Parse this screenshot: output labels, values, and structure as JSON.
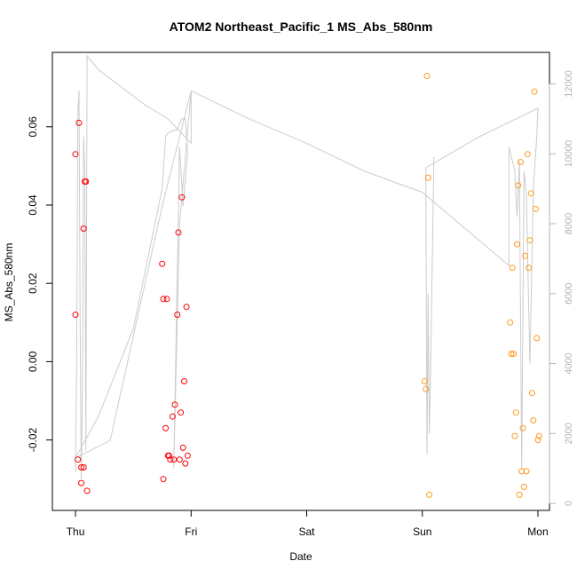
{
  "chart_data": {
    "type": "scatter",
    "title": "ATOM2 Northeast_Pacific_1 MS_Abs_580nm",
    "xlabel": "Date",
    "ylabel": "MS_Abs_580nm",
    "x_ticks": [
      "Thu",
      "Fri",
      "Sat",
      "Sun",
      "Mon"
    ],
    "xlim_days": [
      -0.2,
      4.1
    ],
    "ylim": [
      -0.038,
      0.079
    ],
    "y_ticks": [
      -0.02,
      0.0,
      0.02,
      0.04,
      0.06
    ],
    "y_tick_labels": [
      "-0.02",
      "0.00",
      "0.02",
      "0.04",
      "0.06"
    ],
    "y2_ticks": [
      0,
      2000,
      4000,
      6000,
      8000,
      10000,
      12000
    ],
    "y2_tick_labels": [
      "0",
      "2000",
      "4000",
      "6000",
      "8000",
      "10000",
      "12000"
    ],
    "y2lim": [
      -200,
      12900
    ],
    "grid": false,
    "colors": {
      "red": "#ff0000",
      "orange": "#ff9a1f",
      "line": "#cccccc",
      "axis": "#000000",
      "axis2": "#b3b3b3"
    },
    "series": [
      {
        "color": "red",
        "points": [
          [
            0.0,
            0.053
          ],
          [
            0.0,
            0.012
          ],
          [
            0.02,
            -0.025
          ],
          [
            0.03,
            0.061
          ],
          [
            0.05,
            -0.031
          ],
          [
            0.05,
            -0.027
          ],
          [
            0.07,
            -0.027
          ],
          [
            0.07,
            0.034
          ],
          [
            0.08,
            0.046
          ],
          [
            0.09,
            0.046
          ],
          [
            0.1,
            -0.033
          ],
          [
            0.75,
            0.025
          ],
          [
            0.76,
            0.016
          ],
          [
            0.76,
            -0.03
          ],
          [
            0.78,
            -0.017
          ],
          [
            0.79,
            0.016
          ],
          [
            0.8,
            -0.024
          ],
          [
            0.81,
            -0.024
          ],
          [
            0.82,
            -0.025
          ],
          [
            0.84,
            -0.014
          ],
          [
            0.85,
            -0.025
          ],
          [
            0.86,
            -0.011
          ],
          [
            0.88,
            0.012
          ],
          [
            0.89,
            0.033
          ],
          [
            0.9,
            -0.025
          ],
          [
            0.91,
            -0.013
          ],
          [
            0.92,
            0.042
          ],
          [
            0.93,
            -0.022
          ],
          [
            0.94,
            -0.005
          ],
          [
            0.95,
            -0.026
          ],
          [
            0.96,
            0.014
          ],
          [
            0.97,
            -0.024
          ]
        ]
      },
      {
        "color": "orange",
        "points": [
          [
            3.02,
            -0.005
          ],
          [
            3.03,
            -0.007
          ],
          [
            3.04,
            0.073
          ],
          [
            3.05,
            0.047
          ],
          [
            3.06,
            -0.034
          ],
          [
            3.76,
            0.01
          ],
          [
            3.77,
            0.002
          ],
          [
            3.78,
            0.024
          ],
          [
            3.79,
            0.002
          ],
          [
            3.8,
            -0.019
          ],
          [
            3.81,
            -0.013
          ],
          [
            3.82,
            0.03
          ],
          [
            3.83,
            0.045
          ],
          [
            3.84,
            -0.034
          ],
          [
            3.85,
            0.051
          ],
          [
            3.86,
            -0.028
          ],
          [
            3.87,
            -0.017
          ],
          [
            3.88,
            -0.032
          ],
          [
            3.89,
            0.027
          ],
          [
            3.9,
            -0.028
          ],
          [
            3.91,
            0.053
          ],
          [
            3.92,
            0.024
          ],
          [
            3.93,
            0.031
          ],
          [
            3.94,
            0.043
          ],
          [
            3.95,
            -0.008
          ],
          [
            3.96,
            -0.015
          ],
          [
            3.97,
            0.069
          ],
          [
            3.98,
            0.039
          ],
          [
            3.99,
            0.006
          ],
          [
            4.0,
            -0.02
          ],
          [
            4.01,
            -0.019
          ]
        ]
      }
    ],
    "secondary_line": {
      "axis": "right",
      "points": [
        [
          0.0,
          900
        ],
        [
          0.01,
          4000
        ],
        [
          0.02,
          11200
        ],
        [
          0.03,
          11800
        ],
        [
          0.04,
          5000
        ],
        [
          0.05,
          700
        ],
        [
          0.06,
          3500
        ],
        [
          0.07,
          10500
        ],
        [
          0.08,
          9500
        ],
        [
          0.09,
          1500
        ],
        [
          0.1,
          12800
        ],
        [
          0.2,
          12400
        ],
        [
          0.4,
          11900
        ],
        [
          0.6,
          11400
        ],
        [
          0.8,
          11000
        ],
        [
          1.0,
          10300
        ],
        [
          1.0,
          11800
        ],
        [
          0.9,
          8000
        ],
        [
          0.85,
          1000
        ],
        [
          0.9,
          10200
        ],
        [
          0.93,
          8500
        ],
        [
          0.97,
          10000
        ],
        [
          0.95,
          11000
        ],
        [
          0.92,
          11000
        ],
        [
          0.88,
          10700
        ],
        [
          0.8,
          10600
        ],
        [
          0.78,
          10500
        ],
        [
          0.75,
          9000
        ],
        [
          0.5,
          5000
        ],
        [
          0.2,
          2500
        ],
        [
          0.0,
          1300
        ],
        [
          0.3,
          1800
        ],
        [
          0.75,
          8500
        ],
        [
          1.0,
          11800
        ],
        [
          1.5,
          11000
        ],
        [
          2.0,
          10300
        ],
        [
          2.5,
          9500
        ],
        [
          3.0,
          8900
        ],
        [
          3.5,
          7500
        ],
        [
          3.75,
          6800
        ],
        [
          3.75,
          10200
        ],
        [
          3.8,
          9500
        ],
        [
          3.82,
          8200
        ],
        [
          3.84,
          9800
        ],
        [
          3.86,
          1000
        ],
        [
          3.88,
          9500
        ],
        [
          3.9,
          8800
        ],
        [
          3.93,
          4000
        ],
        [
          3.96,
          9000
        ],
        [
          3.99,
          10500
        ],
        [
          4.0,
          11300
        ],
        [
          3.5,
          10500
        ],
        [
          3.03,
          9600
        ],
        [
          3.04,
          1400
        ],
        [
          3.05,
          6000
        ],
        [
          3.06,
          2000
        ],
        [
          3.07,
          3500
        ],
        [
          3.1,
          9900
        ]
      ]
    }
  }
}
